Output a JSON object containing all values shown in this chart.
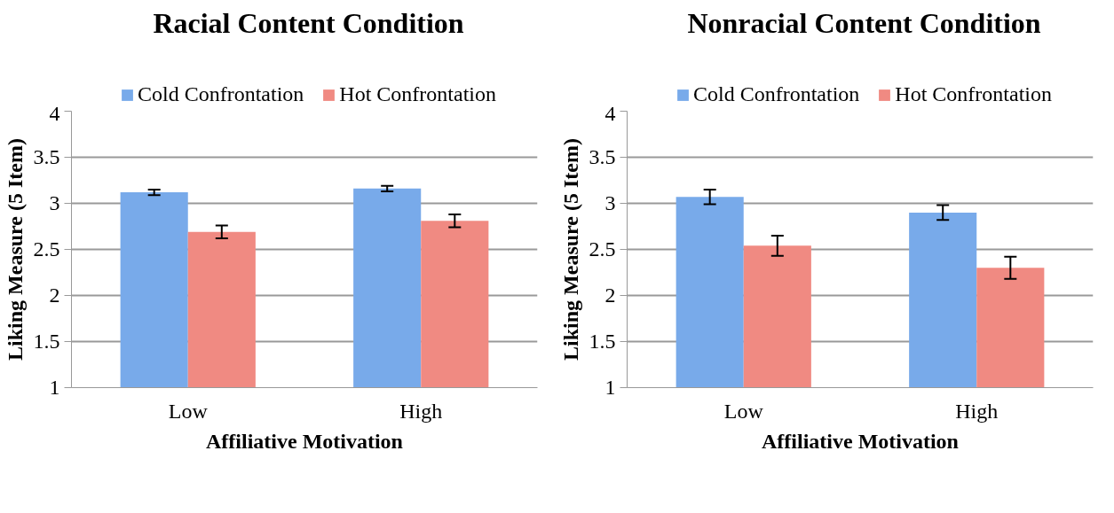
{
  "chart_data": [
    {
      "type": "bar",
      "title": "Racial Content Condition",
      "xlabel": "Affiliative Motivation",
      "ylabel": "Liking Measure (5 Item)",
      "categories": [
        "Low",
        "High"
      ],
      "ylim": [
        1,
        4
      ],
      "yticks": [
        1,
        1.5,
        2,
        2.5,
        3,
        3.5,
        4
      ],
      "grid": "y",
      "legend": "top",
      "series": [
        {
          "name": "Cold Confrontation",
          "color": "#78aaea",
          "values": [
            3.12,
            3.16
          ],
          "errors": [
            0.03,
            0.03
          ]
        },
        {
          "name": "Hot Confrontation",
          "color": "#f08a82",
          "values": [
            2.69,
            2.81
          ],
          "errors": [
            0.07,
            0.07
          ]
        }
      ]
    },
    {
      "type": "bar",
      "title": "Nonracial Content Condition",
      "xlabel": "Affiliative Motivation",
      "ylabel": "Liking Measure (5 Item)",
      "categories": [
        "Low",
        "High"
      ],
      "ylim": [
        1,
        4
      ],
      "yticks": [
        1,
        1.5,
        2,
        2.5,
        3,
        3.5,
        4
      ],
      "grid": "y",
      "legend": "top",
      "series": [
        {
          "name": "Cold Confrontation",
          "color": "#78aaea",
          "values": [
            3.07,
            2.9
          ],
          "errors": [
            0.08,
            0.08
          ]
        },
        {
          "name": "Hot Confrontation",
          "color": "#f08a82",
          "values": [
            2.54,
            2.3
          ],
          "errors": [
            0.11,
            0.12
          ]
        }
      ]
    }
  ]
}
